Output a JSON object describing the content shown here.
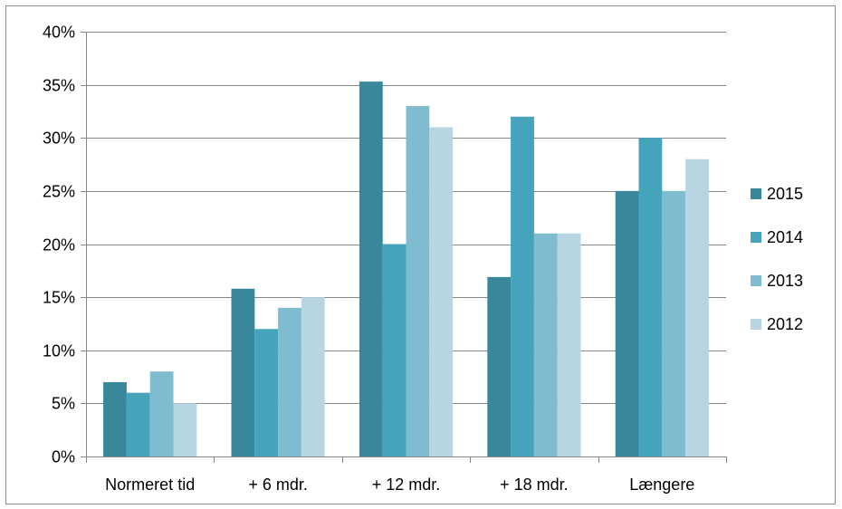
{
  "colors": {
    "2015": "#38879b",
    "2014": "#45a3bc",
    "2013": "#7fbccf",
    "2012": "#b8d6e2",
    "gridline": "#868686",
    "axis": "#868686"
  },
  "chart_data": {
    "type": "bar",
    "title": "",
    "xlabel": "",
    "ylabel": "",
    "categories": [
      "Normeret tid",
      "+ 6 mdr.",
      "+ 12 mdr.",
      "+ 18 mdr.",
      "Længere"
    ],
    "series": [
      {
        "name": "2015",
        "values": [
          7,
          15.8,
          35.3,
          16.9,
          25
        ]
      },
      {
        "name": "2014",
        "values": [
          6,
          12,
          20,
          32,
          30
        ]
      },
      {
        "name": "2013",
        "values": [
          8,
          14,
          33,
          21,
          25
        ]
      },
      {
        "name": "2012",
        "values": [
          5,
          15,
          31,
          21,
          28
        ]
      }
    ],
    "ylim": [
      0,
      40
    ],
    "yticks": [
      0,
      5,
      10,
      15,
      20,
      25,
      30,
      35,
      40
    ],
    "ytick_labels": [
      "0%",
      "5%",
      "10%",
      "15%",
      "20%",
      "25%",
      "30%",
      "35%",
      "40%"
    ],
    "grid": true,
    "legend_position": "right"
  }
}
